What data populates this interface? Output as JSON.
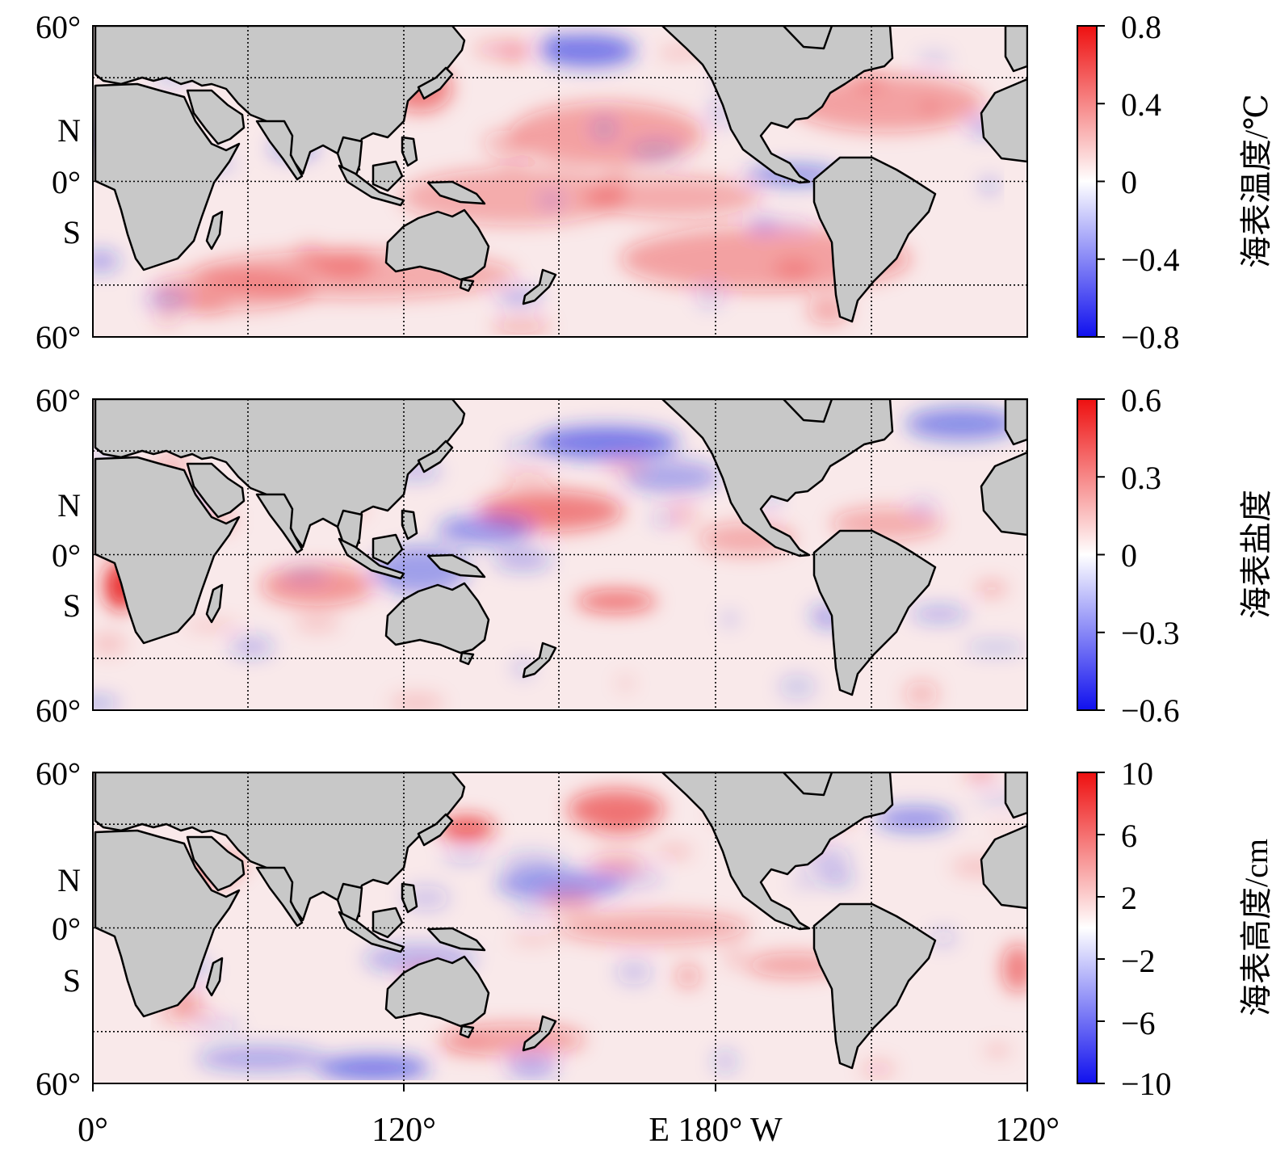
{
  "colors": {
    "land": "#c8c8c8",
    "coast": "#000000",
    "positive": "#e8181a",
    "negative": "#1a2fe8",
    "grid": "#000000"
  },
  "latitude_labels": {
    "north": "60°",
    "n": "N",
    "equator": "0°",
    "s": "S",
    "south": "60°"
  },
  "longitude_labels": [
    "0°",
    "120°",
    "E 180° W",
    "120°"
  ],
  "panels": [
    {
      "colorbar_title": "海表温度/℃",
      "ticks": [
        "0.8",
        "0.4",
        "0",
        "−0.4",
        "−0.8"
      ],
      "range": [
        -0.8,
        0.8
      ]
    },
    {
      "colorbar_title": "海表盐度",
      "ticks": [
        "0.6",
        "0.3",
        "0",
        "−0.3",
        "−0.6"
      ],
      "range": [
        -0.6,
        0.6
      ]
    },
    {
      "colorbar_title": "海表高度/cm",
      "ticks": [
        "10",
        "6",
        "2",
        "−2",
        "−6",
        "−10"
      ],
      "range": [
        -10,
        10
      ]
    }
  ]
}
